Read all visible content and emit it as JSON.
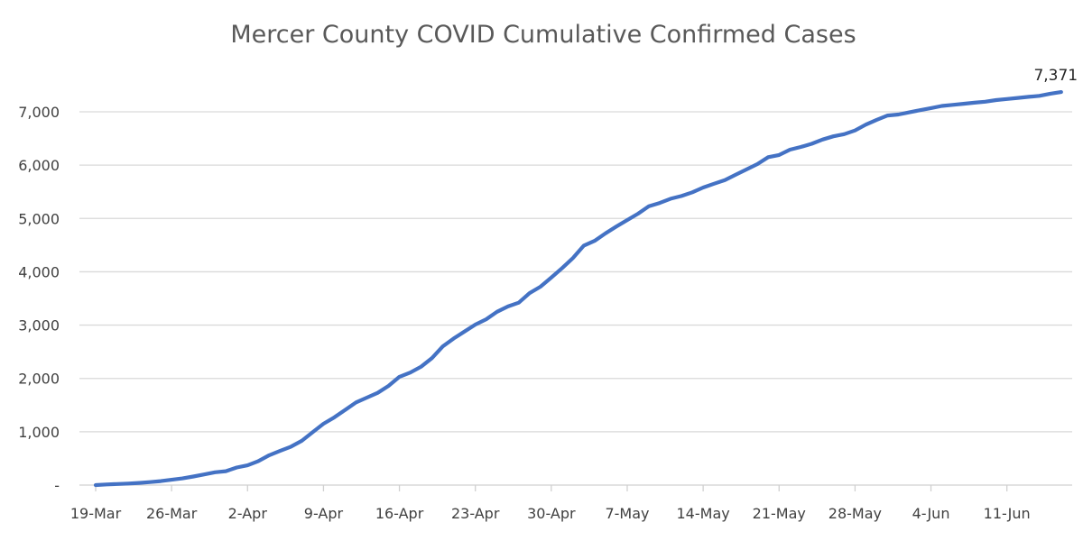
{
  "chart_data": {
    "type": "line",
    "title": "Mercer County COVID Cumulative Confirmed Cases",
    "xlabel": "",
    "ylabel": "",
    "x_unit": "days since first date (daily points)",
    "x_tick_labels": [
      "19-Mar",
      "26-Mar",
      "2-Apr",
      "9-Apr",
      "16-Apr",
      "23-Apr",
      "30-Apr",
      "7-May",
      "14-May",
      "21-May",
      "28-May",
      "4-Jun",
      "11-Jun"
    ],
    "x_tick_interval_days": 7,
    "y_tick_labels": [
      "-",
      "1,000",
      "2,000",
      "3,000",
      "4,000",
      "5,000",
      "6,000",
      "7,000"
    ],
    "y_ticks": [
      0,
      1000,
      2000,
      3000,
      4000,
      5000,
      6000,
      7000
    ],
    "ylim": [
      0,
      7500
    ],
    "grid": true,
    "legend": "none",
    "color": "#4472c4",
    "series": [
      {
        "name": "Cumulative Confirmed Cases",
        "values": [
          0,
          12,
          20,
          28,
          40,
          55,
          75,
          100,
          125,
          160,
          200,
          240,
          260,
          330,
          370,
          450,
          560,
          640,
          720,
          830,
          990,
          1150,
          1270,
          1410,
          1550,
          1640,
          1730,
          1860,
          2030,
          2110,
          2220,
          2380,
          2600,
          2750,
          2880,
          3010,
          3110,
          3250,
          3350,
          3420,
          3600,
          3720,
          3890,
          4070,
          4260,
          4490,
          4580,
          4720,
          4850,
          4970,
          5090,
          5230,
          5290,
          5370,
          5420,
          5490,
          5580,
          5650,
          5720,
          5820,
          5920,
          6020,
          6150,
          6190,
          6290,
          6340,
          6400,
          6480,
          6540,
          6580,
          6650,
          6760,
          6850,
          6930,
          6950,
          6990,
          7030,
          7070,
          7110,
          7130,
          7150,
          7170,
          7190,
          7220,
          7240,
          7260,
          7280,
          7300,
          7340,
          7371
        ]
      }
    ],
    "annotations": [
      {
        "text": "7,371",
        "point": "last"
      }
    ]
  }
}
